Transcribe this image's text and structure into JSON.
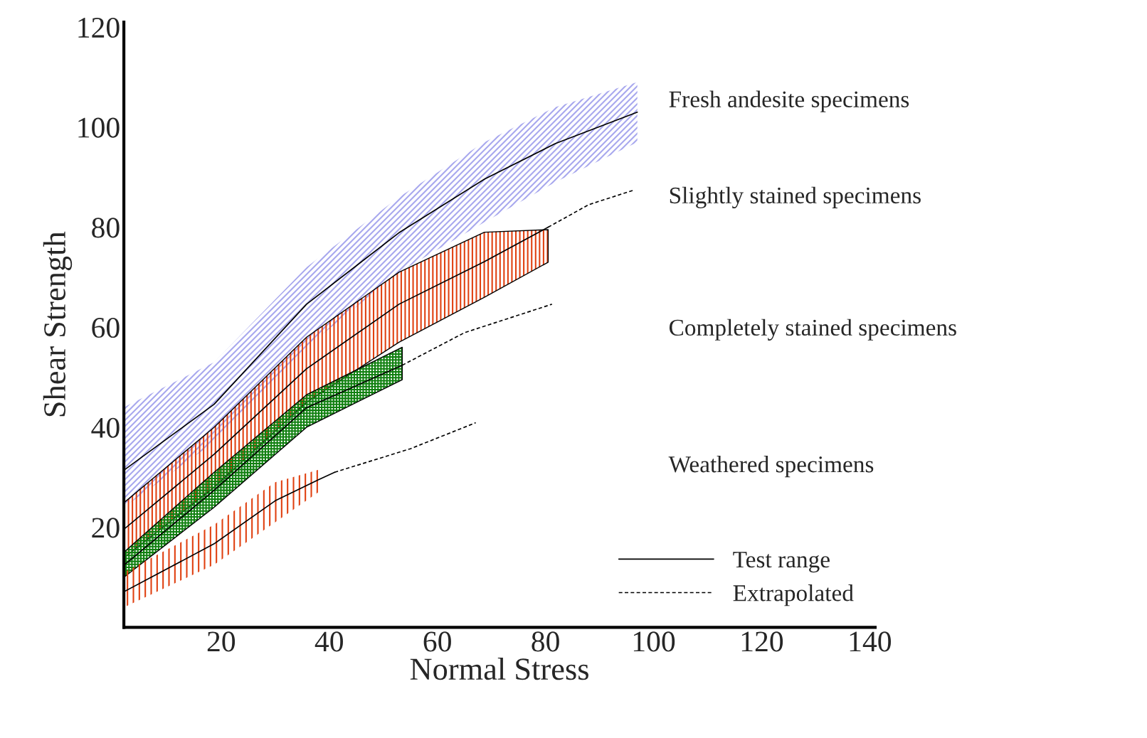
{
  "chart_data": {
    "type": "line",
    "xlabel": "Normal Stress",
    "ylabel": "Shear Strength",
    "xlim": [
      2,
      141
    ],
    "ylim": [
      0,
      121
    ],
    "xticks": [
      20,
      40,
      60,
      80,
      100,
      120,
      140
    ],
    "yticks": [
      20,
      40,
      60,
      80,
      100,
      120
    ],
    "grid": false,
    "legend": "right",
    "annotations": [
      "Test range",
      "Extrapolated"
    ],
    "series": [
      {
        "type": "area",
        "color": "#a8a8ee",
        "x": [
          2,
          18.7,
          35.8,
          52.9,
          68.7,
          81.8,
          97
        ],
        "values": [
          null,
          null,
          null,
          null,
          null,
          null,
          null
        ],
        "lower": [
          24,
          37,
          56,
          71,
          81,
          89,
          97
        ],
        "upper": [
          44,
          53,
          72,
          86,
          97,
          104,
          109
        ]
      },
      {
        "type": "area",
        "color": "#e04010",
        "x": [
          2,
          18.7,
          35.8,
          52.9,
          68.7,
          80.5
        ],
        "values": [
          null,
          null,
          null,
          null,
          null,
          null
        ],
        "lower": [
          13.9,
          28,
          45,
          57,
          66,
          73
        ],
        "upper": [
          24.9,
          40,
          58,
          71,
          79,
          79.5
        ]
      },
      {
        "type": "area",
        "color": "#108010",
        "x": [
          2,
          18.7,
          35.8,
          53.5
        ],
        "values": [
          null,
          null,
          null,
          null
        ],
        "lower": [
          10,
          24,
          40,
          49.5
        ],
        "upper": [
          15,
          31,
          46.5,
          56
        ]
      },
      {
        "type": "area",
        "color": "#e04010",
        "x": [
          2,
          18.7,
          30,
          38
        ],
        "values": [
          null,
          null,
          null,
          null
        ],
        "lower": [
          4,
          12.5,
          21,
          27
        ],
        "upper": [
          11,
          20.5,
          29,
          31.5
        ]
      },
      {
        "name": "Fresh andesite specimens",
        "color": "#000000",
        "line_style": "solid",
        "x": [
          2,
          18.7,
          35.8,
          52.9,
          68.7,
          81.8,
          97
        ],
        "values": [
          31.4,
          44.6,
          64.6,
          78.9,
          89.6,
          96.7,
          103
        ]
      },
      {
        "name": "Slightly stained specimens",
        "color": "#000000",
        "line_style": "solid",
        "x": [
          2,
          18.7,
          35.8,
          52.9,
          68.7,
          80.5
        ],
        "values": [
          19.6,
          34.6,
          51.7,
          64.6,
          73.1,
          80
        ]
      },
      {
        "color": "#000000",
        "line_style": "dashed",
        "x": [
          80.5,
          88,
          96.3
        ],
        "values": [
          80,
          84.5,
          87.4
        ]
      },
      {
        "name": "Completely stained specimens",
        "color": "#000000",
        "line_style": "solid",
        "x": [
          2,
          18.7,
          35.8,
          53.5
        ],
        "values": [
          12.4,
          27.4,
          43.9,
          52.4
        ]
      },
      {
        "color": "#000000",
        "line_style": "dashed",
        "x": [
          53.5,
          65,
          81.2
        ],
        "values": [
          52.4,
          58.9,
          64.6
        ]
      },
      {
        "name": "Weathered specimens",
        "color": "#000000",
        "line_style": "solid",
        "x": [
          2,
          18.7,
          30,
          38,
          41
        ],
        "values": [
          7.1,
          16.7,
          25.3,
          29.5,
          31
        ]
      },
      {
        "color": "#000000",
        "line_style": "dashed",
        "x": [
          41,
          55,
          67.1
        ],
        "values": [
          31,
          35.7,
          40.9
        ]
      }
    ]
  }
}
